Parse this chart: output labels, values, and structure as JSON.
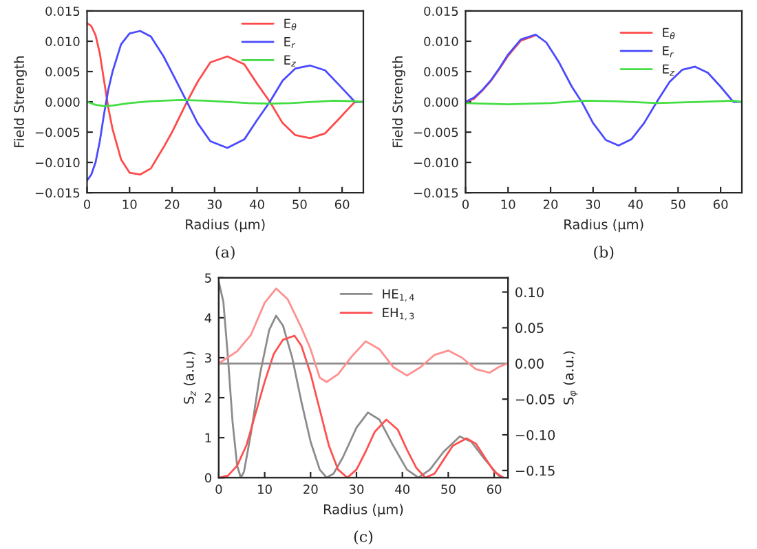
{
  "chart_data": [
    {
      "type": "line",
      "title": "(a)",
      "xlabel": "Radius (µm)",
      "ylabel": "Field Strength",
      "xlim": [
        0,
        65
      ],
      "xticks": [
        0,
        10,
        20,
        30,
        40,
        50,
        60
      ],
      "ylim": [
        -0.015,
        0.015
      ],
      "yticks": [
        {
          "value": -0.015,
          "label": "−0.015"
        },
        {
          "value": -0.01,
          "label": "−0.010"
        },
        {
          "value": -0.005,
          "label": "−0.005"
        },
        {
          "value": 0,
          "label": "0.000"
        },
        {
          "value": 0.005,
          "label": "0.005"
        },
        {
          "value": 0.01,
          "label": "0.010"
        },
        {
          "value": 0.015,
          "label": "0.015"
        }
      ],
      "legend": "top right",
      "grid": false,
      "marker": "none",
      "line_style": "solid",
      "series": [
        {
          "name": "E$_{θ}$",
          "color": "#ff4a4a",
          "x": [
            0,
            1,
            2,
            3,
            4,
            5,
            6,
            8,
            10,
            12.5,
            15,
            18,
            20,
            23.5,
            26,
            29,
            33,
            37,
            40,
            43,
            46,
            49,
            52.5,
            56,
            59,
            63,
            65
          ],
          "values": [
            0.013,
            0.0125,
            0.011,
            0.008,
            0.0035,
            -0.001,
            -0.0045,
            -0.0095,
            -0.0117,
            -0.012,
            -0.011,
            -0.0075,
            -0.005,
            0,
            0.0033,
            0.0065,
            0.0075,
            0.0062,
            0.003,
            0,
            -0.0035,
            -0.0055,
            -0.006,
            -0.0052,
            -0.003,
            0,
            0
          ]
        },
        {
          "name": "E$_{r}$",
          "color": "#4a4aff",
          "x": [
            0,
            1,
            2,
            3,
            4,
            5,
            6,
            8,
            10,
            12.5,
            15,
            18,
            20,
            23.5,
            26,
            29,
            33,
            37,
            40,
            43,
            46,
            49,
            52.5,
            56,
            59,
            63,
            65
          ],
          "values": [
            -0.013,
            -0.012,
            -0.01,
            -0.0065,
            -0.002,
            0.002,
            0.005,
            0.0095,
            0.0113,
            0.0117,
            0.0108,
            0.0075,
            0.0048,
            0,
            -0.0035,
            -0.0065,
            -0.0076,
            -0.0062,
            -0.003,
            0,
            0.0035,
            0.0055,
            0.006,
            0.0052,
            0.003,
            0,
            0
          ]
        },
        {
          "name": "E$_{z}$",
          "color": "#44dd44",
          "x": [
            0,
            2,
            4,
            6,
            10,
            15,
            22,
            28,
            33,
            38,
            43,
            48,
            53,
            58,
            63,
            65
          ],
          "values": [
            0,
            -0.0005,
            -0.0007,
            -0.0006,
            -0.0002,
            0.0001,
            0.0003,
            0.0002,
            0,
            -0.0002,
            -0.0003,
            -0.0002,
            0,
            0.0002,
            0.0001,
            0
          ]
        }
      ]
    },
    {
      "type": "line",
      "title": "(b)",
      "xlabel": "Radius (µm)",
      "ylabel": "Field Strength",
      "xlim": [
        0,
        65
      ],
      "xticks": [
        0,
        10,
        20,
        30,
        40,
        50,
        60
      ],
      "ylim": [
        -0.015,
        0.015
      ],
      "yticks": [
        {
          "value": -0.015,
          "label": "−0.015"
        },
        {
          "value": -0.01,
          "label": "−0.010"
        },
        {
          "value": -0.005,
          "label": "−0.005"
        },
        {
          "value": 0,
          "label": "0.000"
        },
        {
          "value": 0.005,
          "label": "0.005"
        },
        {
          "value": 0.01,
          "label": "0.010"
        },
        {
          "value": 0.015,
          "label": "0.015"
        }
      ],
      "legend": "top right",
      "grid": false,
      "marker": "none",
      "line_style": "solid",
      "series": [
        {
          "name": "E$_{θ}$",
          "color": "#ff4a4a",
          "x": [
            0,
            2,
            4,
            6,
            8,
            10,
            13,
            16.5
          ],
          "values": [
            0,
            0.0005,
            0.0019,
            0.0035,
            0.0055,
            0.0076,
            0.0101,
            0.011
          ]
        },
        {
          "name": "E$_{r}$",
          "color": "#4a4aff",
          "x": [
            0,
            2,
            4,
            6,
            8,
            10,
            13,
            16.5,
            19,
            22,
            25,
            27.5,
            30,
            33,
            36,
            39,
            42,
            45,
            48,
            51,
            54,
            57,
            60,
            63,
            65
          ],
          "values": [
            0,
            0.0007,
            0.002,
            0.0036,
            0.0056,
            0.0078,
            0.0103,
            0.0111,
            0.0098,
            0.0065,
            0.0025,
            -0.0002,
            -0.0035,
            -0.0063,
            -0.0072,
            -0.0062,
            -0.0035,
            0,
            0.0033,
            0.0053,
            0.0058,
            0.0048,
            0.0025,
            0,
            0
          ]
        },
        {
          "name": "E$_{z}$",
          "color": "#44dd44",
          "x": [
            0,
            10,
            20,
            28,
            35,
            45,
            55,
            63,
            65
          ],
          "values": [
            -0.0002,
            -0.0004,
            -0.0002,
            0.0002,
            0.0001,
            -0.0002,
            0,
            0.0002,
            0
          ]
        }
      ]
    },
    {
      "type": "line",
      "title": "(c)",
      "xlabel": "Radius (µm)",
      "ylabel": "S$_{z}$ (a.u.)",
      "y2label": "S$_{φ}$ (a.u.)",
      "xlim": [
        0,
        63
      ],
      "xticks": [
        0,
        10,
        20,
        30,
        40,
        50,
        60
      ],
      "ylim": [
        0,
        5
      ],
      "yticks": [
        0,
        1,
        2,
        3,
        4,
        5
      ],
      "y2lim": [
        -0.16,
        0.12
      ],
      "y2ticks": [
        {
          "value": -0.15,
          "label": "−0.15"
        },
        {
          "value": -0.1,
          "label": "−0.10"
        },
        {
          "value": -0.05,
          "label": "−0.05"
        },
        {
          "value": 0,
          "label": "0.00"
        },
        {
          "value": 0.05,
          "label": "0.05"
        },
        {
          "value": 0.1,
          "label": "0.10"
        }
      ],
      "legend": "top",
      "grid": false,
      "marker": "none",
      "line_style": "solid",
      "series": [
        {
          "name": "HE$_{1,4}$",
          "color": "#8c8c8c",
          "x": [
            0,
            1,
            2,
            3,
            4,
            4.8,
            5.5,
            7,
            9,
            11,
            12.5,
            14,
            16,
            18,
            20,
            22,
            23.5,
            25,
            27,
            30,
            32.5,
            35,
            38,
            41,
            43.5,
            46,
            49,
            52.5,
            55,
            58,
            61,
            62
          ],
          "values": [
            4.9,
            4.4,
            3,
            1.4,
            0.3,
            0,
            0.15,
            1.1,
            2.6,
            3.7,
            4.05,
            3.8,
            3,
            1.9,
            0.9,
            0.2,
            0,
            0.1,
            0.5,
            1.25,
            1.63,
            1.45,
            0.8,
            0.2,
            0,
            0.2,
            0.65,
            1.03,
            0.9,
            0.45,
            0.05,
            0
          ]
        },
        {
          "name": "EH$_{1,3}$",
          "color": "#ff5050",
          "x": [
            0,
            2,
            4,
            6,
            8,
            10,
            12,
            14,
            16.5,
            18,
            20,
            22,
            24,
            26,
            28,
            30,
            32,
            34,
            36.5,
            39,
            41,
            43,
            45,
            47,
            49,
            51,
            54,
            56,
            58,
            60,
            62
          ],
          "values": [
            0,
            0.05,
            0.3,
            0.8,
            1.6,
            2.4,
            3.1,
            3.45,
            3.55,
            3.3,
            2.6,
            1.7,
            0.8,
            0.2,
            0,
            0.2,
            0.65,
            1.15,
            1.45,
            1.2,
            0.7,
            0.25,
            0,
            0.1,
            0.45,
            0.8,
            0.98,
            0.85,
            0.5,
            0.15,
            0
          ]
        },
        {
          "axis": "y2",
          "color": "#8c8c8c",
          "x": [
            0,
            63
          ],
          "values": [
            0,
            0
          ]
        },
        {
          "axis": "y2",
          "color": "#ff9090",
          "x": [
            0,
            4,
            7,
            10,
            12.5,
            15,
            18,
            20,
            22,
            23.5,
            26,
            29,
            32,
            35,
            38,
            41,
            44,
            47,
            50,
            53,
            56,
            59,
            61,
            63
          ],
          "values": [
            0,
            0.017,
            0.04,
            0.085,
            0.105,
            0.09,
            0.05,
            0.02,
            -0.02,
            -0.026,
            -0.015,
            0.01,
            0.031,
            0.02,
            -0.005,
            -0.017,
            -0.005,
            0.012,
            0.018,
            0.008,
            -0.008,
            -0.013,
            -0.005,
            0
          ]
        }
      ]
    }
  ]
}
